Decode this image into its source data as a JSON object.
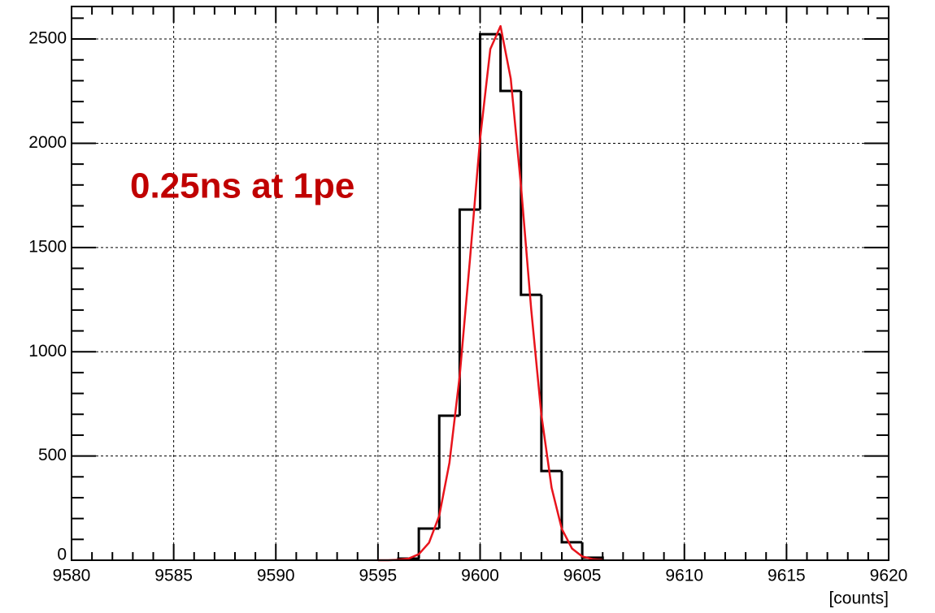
{
  "chart_data": {
    "type": "histogram",
    "bins": [
      9596,
      9597,
      9598,
      9599,
      9600,
      9601,
      9602,
      9603,
      9604,
      9605,
      9606
    ],
    "values": [
      8,
      152,
      693,
      1682,
      2523,
      2251,
      1273,
      428,
      86,
      12
    ],
    "color": "#000000",
    "fit": {
      "type": "line",
      "color": "#e8141c",
      "x": [
        9595,
        9595.5,
        9596,
        9596.5,
        9597,
        9597.5,
        9598,
        9598.5,
        9599,
        9599.5,
        9600,
        9600.5,
        9601,
        9601.5,
        9602,
        9602.5,
        9603,
        9603.5,
        9604,
        9604.5,
        9605,
        9605.5,
        9606
      ],
      "values": [
        0,
        0,
        2,
        8,
        29,
        84,
        214,
        468,
        883,
        1439,
        2022,
        2452,
        2562,
        2310,
        1797,
        1205,
        697,
        348,
        150,
        56,
        18,
        5,
        1
      ]
    },
    "xlabel": "[counts]",
    "annotation": "0.25ns at 1pe",
    "annotation_color": "#c00000",
    "xlim": [
      9580,
      9620
    ],
    "xticks": [
      9580,
      9585,
      9590,
      9595,
      9600,
      9605,
      9610,
      9615,
      9620
    ],
    "ylim": [
      0,
      2656
    ],
    "yticks": [
      0,
      500,
      1000,
      1500,
      2000,
      2500
    ],
    "grid": true
  }
}
